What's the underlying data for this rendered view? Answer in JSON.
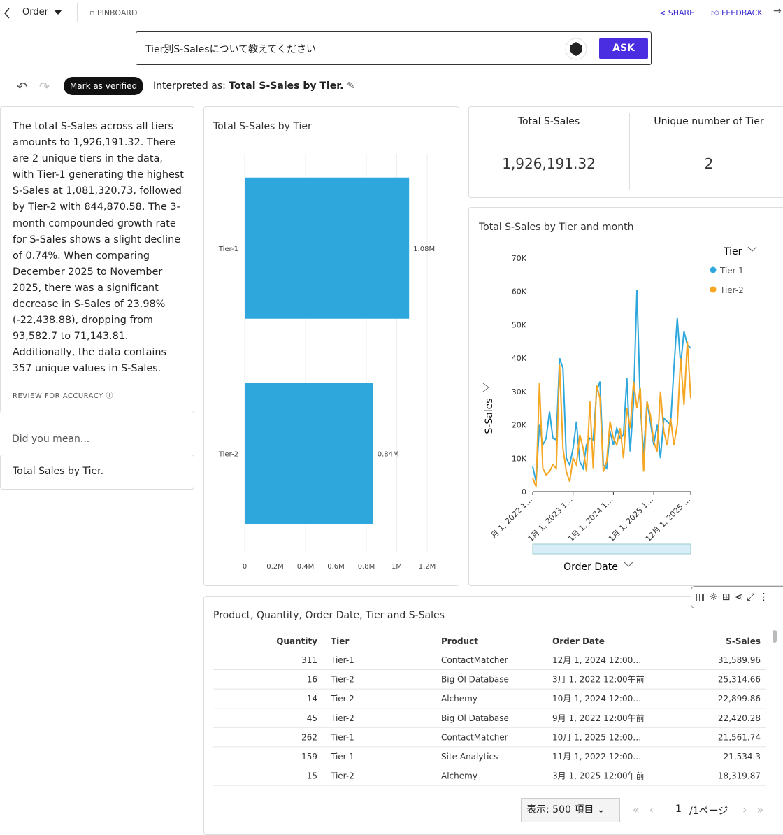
{
  "toolbar": {
    "dataset": "Order",
    "pinboard": "PINBOARD",
    "share": "SHARE",
    "feedback": "FEEDBACK"
  },
  "query": {
    "text": "Tier別S-Salesについて教えてください",
    "button": "ASK"
  },
  "verify": {
    "button": "Mark as verified",
    "prefix": "Interpreted as:",
    "interpretation": "Total S-Sales by Tier."
  },
  "summary": {
    "text": "The total S-Sales across all tiers amounts to 1,926,191.32. There are 2 unique tiers in the data, with Tier-1 generating the highest S-Sales at 1,081,320.73, followed by Tier-2 with 844,870.58. The 3-month compounded growth rate for S-Sales shows a slight decline of 0.74%. When comparing December 2025 to November 2025, there was a significant decrease in S-Sales of 23.98% (-22,438.88), dropping from 93,582.7 to 71,143.81. Additionally, the data contains 357 unique values in S-Sales.",
    "review": "REVIEW FOR ACCURACY"
  },
  "did_you_mean": {
    "label": "Did you mean...",
    "suggestion": "Total Sales by Tier."
  },
  "kpis": [
    {
      "label": "Total S-Sales",
      "value": "1,926,191.32"
    },
    {
      "label": "Unique number of Tier",
      "value": "2"
    }
  ],
  "chart_data": [
    {
      "type": "bar",
      "orientation": "horizontal",
      "title": "Total S-Sales by Tier",
      "categories": [
        "Tier-1",
        "Tier-2"
      ],
      "values": [
        1081320.73,
        844870.58
      ],
      "value_labels": [
        "1.08M",
        "0.84M"
      ],
      "color": "#2ea8dc",
      "xlim": [
        0,
        1200000
      ],
      "xticks": [
        0,
        {
          "value": 200000,
          "label": "0.2M"
        },
        {
          "value": 400000,
          "label": "0.4M"
        },
        {
          "value": 600000,
          "label": "0.6M"
        },
        {
          "value": 800000,
          "label": "0.8M"
        },
        {
          "value": 1000000,
          "label": "1M"
        },
        {
          "value": 1200000,
          "label": "1.2M"
        }
      ],
      "grid": true
    },
    {
      "type": "line",
      "title": "Total S-Sales by Tier and month",
      "x_label": "Order Date",
      "y_label": "S-Sales",
      "legend_title": "Tier",
      "categories": [
        "月 1, 2022 1…",
        null,
        null,
        null,
        null,
        null,
        null,
        null,
        null,
        null,
        null,
        null,
        "1月 1, 2023 1…",
        null,
        null,
        null,
        null,
        null,
        null,
        null,
        null,
        null,
        null,
        null,
        "1月 1, 2024 1…",
        null,
        null,
        null,
        null,
        null,
        null,
        null,
        null,
        null,
        null,
        null,
        "1月 1, 2025 1…",
        null,
        null,
        null,
        null,
        null,
        null,
        null,
        null,
        null,
        null,
        "12月 1, 2025 …"
      ],
      "series": [
        {
          "name": "Tier-1",
          "color": "#2ea8dc",
          "values": [
            7500,
            3000,
            20000,
            14000,
            16000,
            24000,
            16000,
            15500,
            40000,
            37000,
            10000,
            8000,
            13000,
            21000,
            9000,
            7000,
            14000,
            16000,
            15500,
            30000,
            33000,
            8000,
            7000,
            18000,
            14000,
            19000,
            16000,
            17000,
            34000,
            12000,
            27000,
            60500,
            26000,
            11000,
            27000,
            21000,
            14000,
            20000,
            10000,
            22000,
            21000,
            20000,
            37000,
            52000,
            38000,
            48000,
            44000,
            43000
          ]
        },
        {
          "name": "Tier-2",
          "color": "#f5a623",
          "values": [
            4000,
            1500,
            32500,
            7000,
            5000,
            6000,
            8000,
            7000,
            38000,
            13000,
            6000,
            3000,
            10000,
            8000,
            17000,
            13000,
            6000,
            27000,
            7000,
            32000,
            28000,
            6000,
            9000,
            21000,
            16000,
            14000,
            19000,
            10000,
            25000,
            19000,
            33000,
            25000,
            31000,
            6000,
            27000,
            23000,
            15000,
            12000,
            30000,
            18000,
            14000,
            22000,
            14000,
            20000,
            40000,
            26000,
            45000,
            28000
          ]
        }
      ],
      "ylim": [
        0,
        70000
      ],
      "yticks": [
        0,
        {
          "value": 10000,
          "label": "10K"
        },
        {
          "value": 20000,
          "label": "20K"
        },
        {
          "value": 30000,
          "label": "30K"
        },
        {
          "value": 40000,
          "label": "40K"
        },
        {
          "value": 50000,
          "label": "50K"
        },
        {
          "value": 60000,
          "label": "60K"
        },
        {
          "value": 70000,
          "label": "70K"
        }
      ],
      "legend": "right"
    }
  ],
  "table": {
    "title": "Product, Quantity, Order Date, Tier and S-Sales",
    "headers": [
      "Quantity",
      "Tier",
      "Product",
      "Order Date",
      "S-Sales"
    ],
    "rows": [
      [
        "311",
        "Tier-1",
        "ContactMatcher",
        "12月 1, 2024 12:00…",
        "31,589.96"
      ],
      [
        "16",
        "Tier-2",
        "Big Ol Database",
        "3月 1, 2022 12:00午前",
        "25,314.66"
      ],
      [
        "14",
        "Tier-2",
        "Alchemy",
        "10月 1, 2024 12:00…",
        "22,899.86"
      ],
      [
        "45",
        "Tier-2",
        "Big Ol Database",
        "9月 1, 2022 12:00午前",
        "22,420.28"
      ],
      [
        "262",
        "Tier-1",
        "ContactMatcher",
        "10月 1, 2025 12:00…",
        "21,561.74"
      ],
      [
        "159",
        "Tier-1",
        "Site Analytics",
        "11月 1, 2022 12:00…",
        "21,534.3"
      ],
      [
        "15",
        "Tier-2",
        "Alchemy",
        "3月 1, 2025 12:00午前",
        "18,319.87"
      ]
    ]
  },
  "pagination": {
    "page_size": "表示: 500 項目",
    "page": "1",
    "of": "/1ページ"
  }
}
